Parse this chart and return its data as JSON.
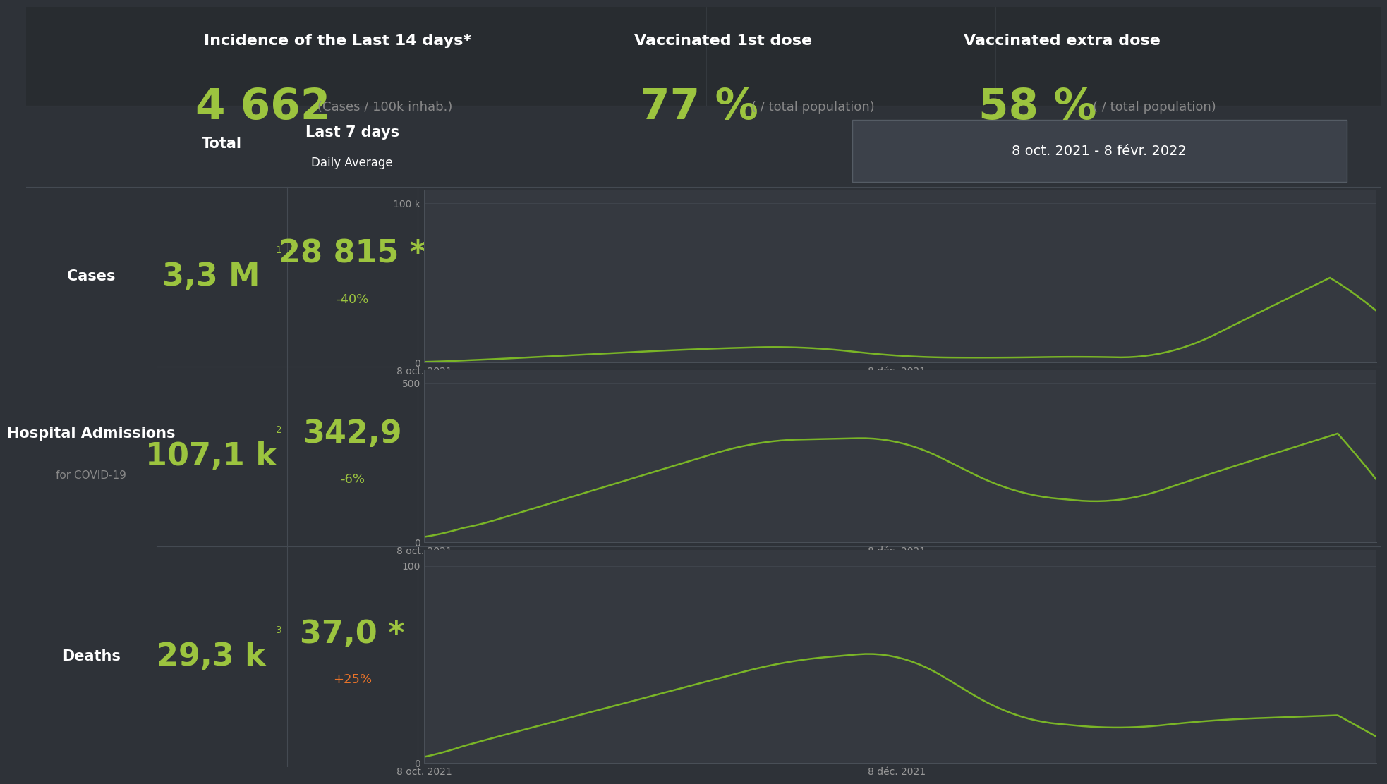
{
  "bg_color": "#2e3238",
  "chart_bg": "#353940",
  "line_color": "#7ab527",
  "text_white": "#ffffff",
  "text_green": "#9cc43f",
  "text_orange": "#e8732a",
  "text_gray": "#888888",
  "title_incidence": "Incidence of the Last 14 days*",
  "incidence_value": "4 662",
  "incidence_unit": "(Cases / 100k inhab.)",
  "vacc1_title": "Vaccinated 1st dose",
  "vacc1_value": "77 %",
  "vacc1_unit": "( / total population)",
  "vacc2_title": "Vaccinated extra dose",
  "vacc2_value": "58 %",
  "vacc2_unit": "( / total population)",
  "date_range": "8 oct. 2021 - 8 févr. 2022",
  "col_total": "Total",
  "col_avg_line1": "Last 7 days",
  "col_avg_line2": "Daily Average",
  "rows": [
    {
      "label": "Cases",
      "label2": "",
      "total": "3,3 M",
      "total_sup": "1",
      "avg": "28 815",
      "avg_sup": " *",
      "change": "-40%",
      "change_color": "#9cc43f",
      "ymax": 100000,
      "ytick_label": "100 k",
      "y0label": "0"
    },
    {
      "label": "Hospital Admissions",
      "label2": "for COVID-19",
      "total": "107,1 k",
      "total_sup": "2",
      "avg": "342,9",
      "avg_sup": "",
      "change": "-6%",
      "change_color": "#9cc43f",
      "ymax": 500,
      "ytick_label": "500",
      "y0label": "0"
    },
    {
      "label": "Deaths",
      "label2": "",
      "total": "29,3 k",
      "total_sup": "3",
      "avg": "37,0",
      "avg_sup": " *",
      "change": "+25%",
      "change_color": "#e8732a",
      "ymax": 100,
      "ytick_label": "100",
      "y0label": "0"
    }
  ],
  "xtick_labels": [
    "8 oct. 2021",
    "8 déc. 2021"
  ],
  "n_points": 124
}
